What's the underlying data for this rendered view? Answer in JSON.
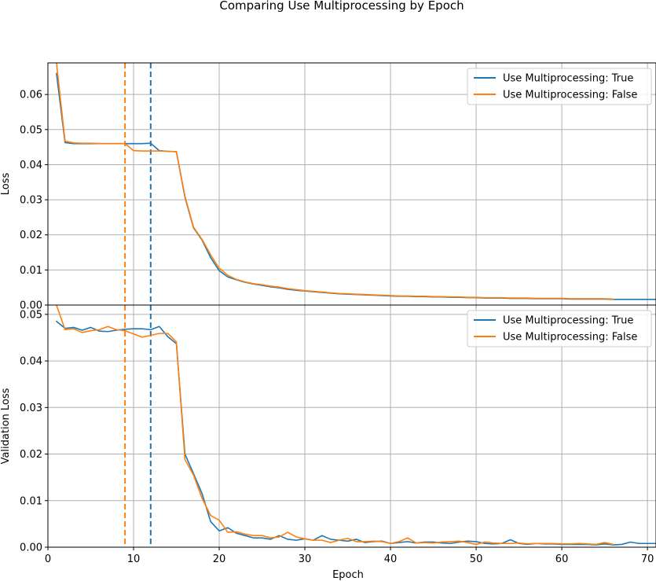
{
  "figure": {
    "title": "Comparing Use Multiprocessing by Epoch"
  },
  "colors": {
    "true": "#1f77b4",
    "false": "#ff7f0e"
  },
  "chart_data": [
    {
      "type": "line",
      "ylabel": "Loss",
      "xlabel": "",
      "xlim": [
        0,
        71
      ],
      "ylim": [
        0,
        0.069
      ],
      "xticks": [
        0,
        10,
        20,
        30,
        40,
        50,
        60,
        70
      ],
      "yticks": [
        0.0,
        0.01,
        0.02,
        0.03,
        0.04,
        0.05,
        0.06
      ],
      "ytick_labels": [
        "0.00",
        "0.01",
        "0.02",
        "0.03",
        "0.04",
        "0.05",
        "0.06"
      ],
      "grid": true,
      "legend_position": "upper-right",
      "vlines": [
        {
          "x": 9,
          "series": "Use Multiprocessing: False",
          "style": "dashed"
        },
        {
          "x": 12,
          "series": "Use Multiprocessing: True",
          "style": "dashed"
        }
      ],
      "series": [
        {
          "name": "Use Multiprocessing: True",
          "color": "#1f77b4",
          "x": [
            1,
            2,
            3,
            4,
            5,
            6,
            7,
            8,
            9,
            10,
            11,
            12,
            13,
            14,
            15,
            16,
            17,
            18,
            19,
            20,
            21,
            22,
            23,
            24,
            25,
            26,
            27,
            28,
            29,
            30,
            31,
            32,
            33,
            34,
            35,
            36,
            37,
            38,
            39,
            40,
            41,
            42,
            43,
            44,
            45,
            46,
            47,
            48,
            49,
            50,
            51,
            52,
            53,
            54,
            55,
            56,
            57,
            58,
            59,
            60,
            61,
            62,
            63,
            64,
            65,
            66,
            67,
            68,
            69,
            70,
            71
          ],
          "values": [
            0.066,
            0.0463,
            0.046,
            0.046,
            0.046,
            0.046,
            0.046,
            0.046,
            0.046,
            0.046,
            0.046,
            0.0461,
            0.044,
            0.0438,
            0.0437,
            0.0307,
            0.022,
            0.0185,
            0.0135,
            0.0098,
            0.008,
            0.0072,
            0.0065,
            0.006,
            0.0056,
            0.0052,
            0.0049,
            0.0045,
            0.0042,
            0.004,
            0.0038,
            0.0036,
            0.0034,
            0.0032,
            0.0031,
            0.003,
            0.0029,
            0.0028,
            0.0027,
            0.0026,
            0.0025,
            0.0025,
            0.0024,
            0.0024,
            0.0023,
            0.0023,
            0.0022,
            0.0022,
            0.0021,
            0.0021,
            0.002,
            0.002,
            0.002,
            0.0019,
            0.0019,
            0.0019,
            0.0018,
            0.0018,
            0.0018,
            0.0018,
            0.0017,
            0.0017,
            0.0017,
            0.0017,
            0.0017,
            0.0016,
            0.0016,
            0.0016,
            0.0016,
            0.0016,
            0.0016
          ]
        },
        {
          "name": "Use Multiprocessing: False",
          "color": "#ff7f0e",
          "x": [
            1,
            2,
            3,
            4,
            5,
            6,
            7,
            8,
            9,
            10,
            11,
            12,
            13,
            14,
            15,
            16,
            17,
            18,
            19,
            20,
            21,
            22,
            23,
            24,
            25,
            26,
            27,
            28,
            29,
            30,
            31,
            32,
            33,
            34,
            35,
            36,
            37,
            38,
            39,
            40,
            41,
            42,
            43,
            44,
            45,
            46,
            47,
            48,
            49,
            50,
            51,
            52,
            53,
            54,
            55,
            56,
            57,
            58,
            59,
            60,
            61,
            62,
            63,
            64,
            65,
            66
          ],
          "values": [
            0.069,
            0.0467,
            0.0462,
            0.0461,
            0.0461,
            0.046,
            0.046,
            0.046,
            0.046,
            0.044,
            0.0439,
            0.0439,
            0.0439,
            0.0438,
            0.0437,
            0.031,
            0.0222,
            0.0187,
            0.0143,
            0.0105,
            0.0085,
            0.0073,
            0.0066,
            0.0061,
            0.0058,
            0.0054,
            0.0051,
            0.0047,
            0.0044,
            0.0041,
            0.0039,
            0.0037,
            0.0035,
            0.0033,
            0.0032,
            0.0031,
            0.003,
            0.0029,
            0.0028,
            0.0027,
            0.0026,
            0.0026,
            0.0025,
            0.0025,
            0.0024,
            0.0024,
            0.0023,
            0.0023,
            0.0022,
            0.0022,
            0.0021,
            0.0021,
            0.0021,
            0.002,
            0.002,
            0.002,
            0.0019,
            0.0019,
            0.0019,
            0.0019,
            0.0018,
            0.0018,
            0.0018,
            0.0018,
            0.0018,
            0.0017
          ]
        }
      ]
    },
    {
      "type": "line",
      "ylabel": "Validation Loss",
      "xlabel": "Epoch",
      "xlim": [
        0,
        71
      ],
      "ylim": [
        0,
        0.052
      ],
      "xticks": [
        0,
        10,
        20,
        30,
        40,
        50,
        60,
        70
      ],
      "yticks": [
        0.0,
        0.01,
        0.02,
        0.03,
        0.04,
        0.05
      ],
      "ytick_labels": [
        "0.00",
        "0.01",
        "0.02",
        "0.03",
        "0.04",
        "0.05"
      ],
      "grid": true,
      "legend_position": "upper-right",
      "vlines": [
        {
          "x": 9,
          "series": "Use Multiprocessing: False",
          "style": "dashed"
        },
        {
          "x": 12,
          "series": "Use Multiprocessing: True",
          "style": "dashed"
        }
      ],
      "series": [
        {
          "name": "Use Multiprocessing: True",
          "color": "#1f77b4",
          "x": [
            1,
            2,
            3,
            4,
            5,
            6,
            7,
            8,
            9,
            10,
            11,
            12,
            13,
            14,
            15,
            16,
            17,
            18,
            19,
            20,
            21,
            22,
            23,
            24,
            25,
            26,
            27,
            28,
            29,
            30,
            31,
            32,
            33,
            34,
            35,
            36,
            37,
            38,
            39,
            40,
            41,
            42,
            43,
            44,
            45,
            46,
            47,
            48,
            49,
            50,
            51,
            52,
            53,
            54,
            55,
            56,
            57,
            58,
            59,
            60,
            61,
            62,
            63,
            64,
            65,
            66,
            67,
            68,
            69,
            70,
            71
          ],
          "values": [
            0.0485,
            0.047,
            0.0472,
            0.0466,
            0.0472,
            0.0464,
            0.0463,
            0.0466,
            0.0468,
            0.0469,
            0.0469,
            0.0467,
            0.0474,
            0.0452,
            0.0437,
            0.02,
            0.0158,
            0.0115,
            0.0055,
            0.0035,
            0.0042,
            0.003,
            0.0025,
            0.002,
            0.002,
            0.0017,
            0.0025,
            0.0017,
            0.0015,
            0.0018,
            0.0015,
            0.0025,
            0.0017,
            0.0015,
            0.0013,
            0.0017,
            0.001,
            0.0012,
            0.0013,
            0.0008,
            0.001,
            0.0012,
            0.0009,
            0.0011,
            0.0011,
            0.0009,
            0.0008,
            0.0011,
            0.0013,
            0.0012,
            0.0008,
            0.0007,
            0.0008,
            0.0016,
            0.0008,
            0.0006,
            0.0008,
            0.0007,
            0.0007,
            0.0006,
            0.0006,
            0.0006,
            0.0006,
            0.0005,
            0.0007,
            0.0005,
            0.0006,
            0.0011,
            0.0008,
            0.0008,
            0.0008
          ]
        },
        {
          "name": "Use Multiprocessing: False",
          "color": "#ff7f0e",
          "x": [
            1,
            2,
            3,
            4,
            5,
            6,
            7,
            8,
            9,
            10,
            11,
            12,
            13,
            14,
            15,
            16,
            17,
            18,
            19,
            20,
            21,
            22,
            23,
            24,
            25,
            26,
            27,
            28,
            29,
            30,
            31,
            32,
            33,
            34,
            35,
            36,
            37,
            38,
            39,
            40,
            41,
            42,
            43,
            44,
            45,
            46,
            47,
            48,
            49,
            50,
            51,
            52,
            53,
            54,
            55,
            56,
            57,
            58,
            59,
            60,
            61,
            62,
            63,
            64,
            65,
            66
          ],
          "values": [
            0.052,
            0.0467,
            0.0469,
            0.0461,
            0.0465,
            0.0467,
            0.0474,
            0.0467,
            0.0465,
            0.0458,
            0.0451,
            0.0455,
            0.0459,
            0.0459,
            0.0441,
            0.0188,
            0.0155,
            0.0105,
            0.0068,
            0.0058,
            0.0032,
            0.0033,
            0.0028,
            0.0025,
            0.0025,
            0.002,
            0.0022,
            0.0032,
            0.0022,
            0.0018,
            0.0015,
            0.0015,
            0.001,
            0.0015,
            0.0019,
            0.0012,
            0.0012,
            0.0013,
            0.0012,
            0.0008,
            0.0012,
            0.002,
            0.0009,
            0.001,
            0.0009,
            0.0011,
            0.0012,
            0.0013,
            0.001,
            0.0006,
            0.0011,
            0.0009,
            0.0008,
            0.0008,
            0.0009,
            0.0007,
            0.0008,
            0.0008,
            0.0008,
            0.0007,
            0.0007,
            0.0008,
            0.0007,
            0.0006,
            0.001,
            0.0006
          ]
        }
      ]
    }
  ]
}
